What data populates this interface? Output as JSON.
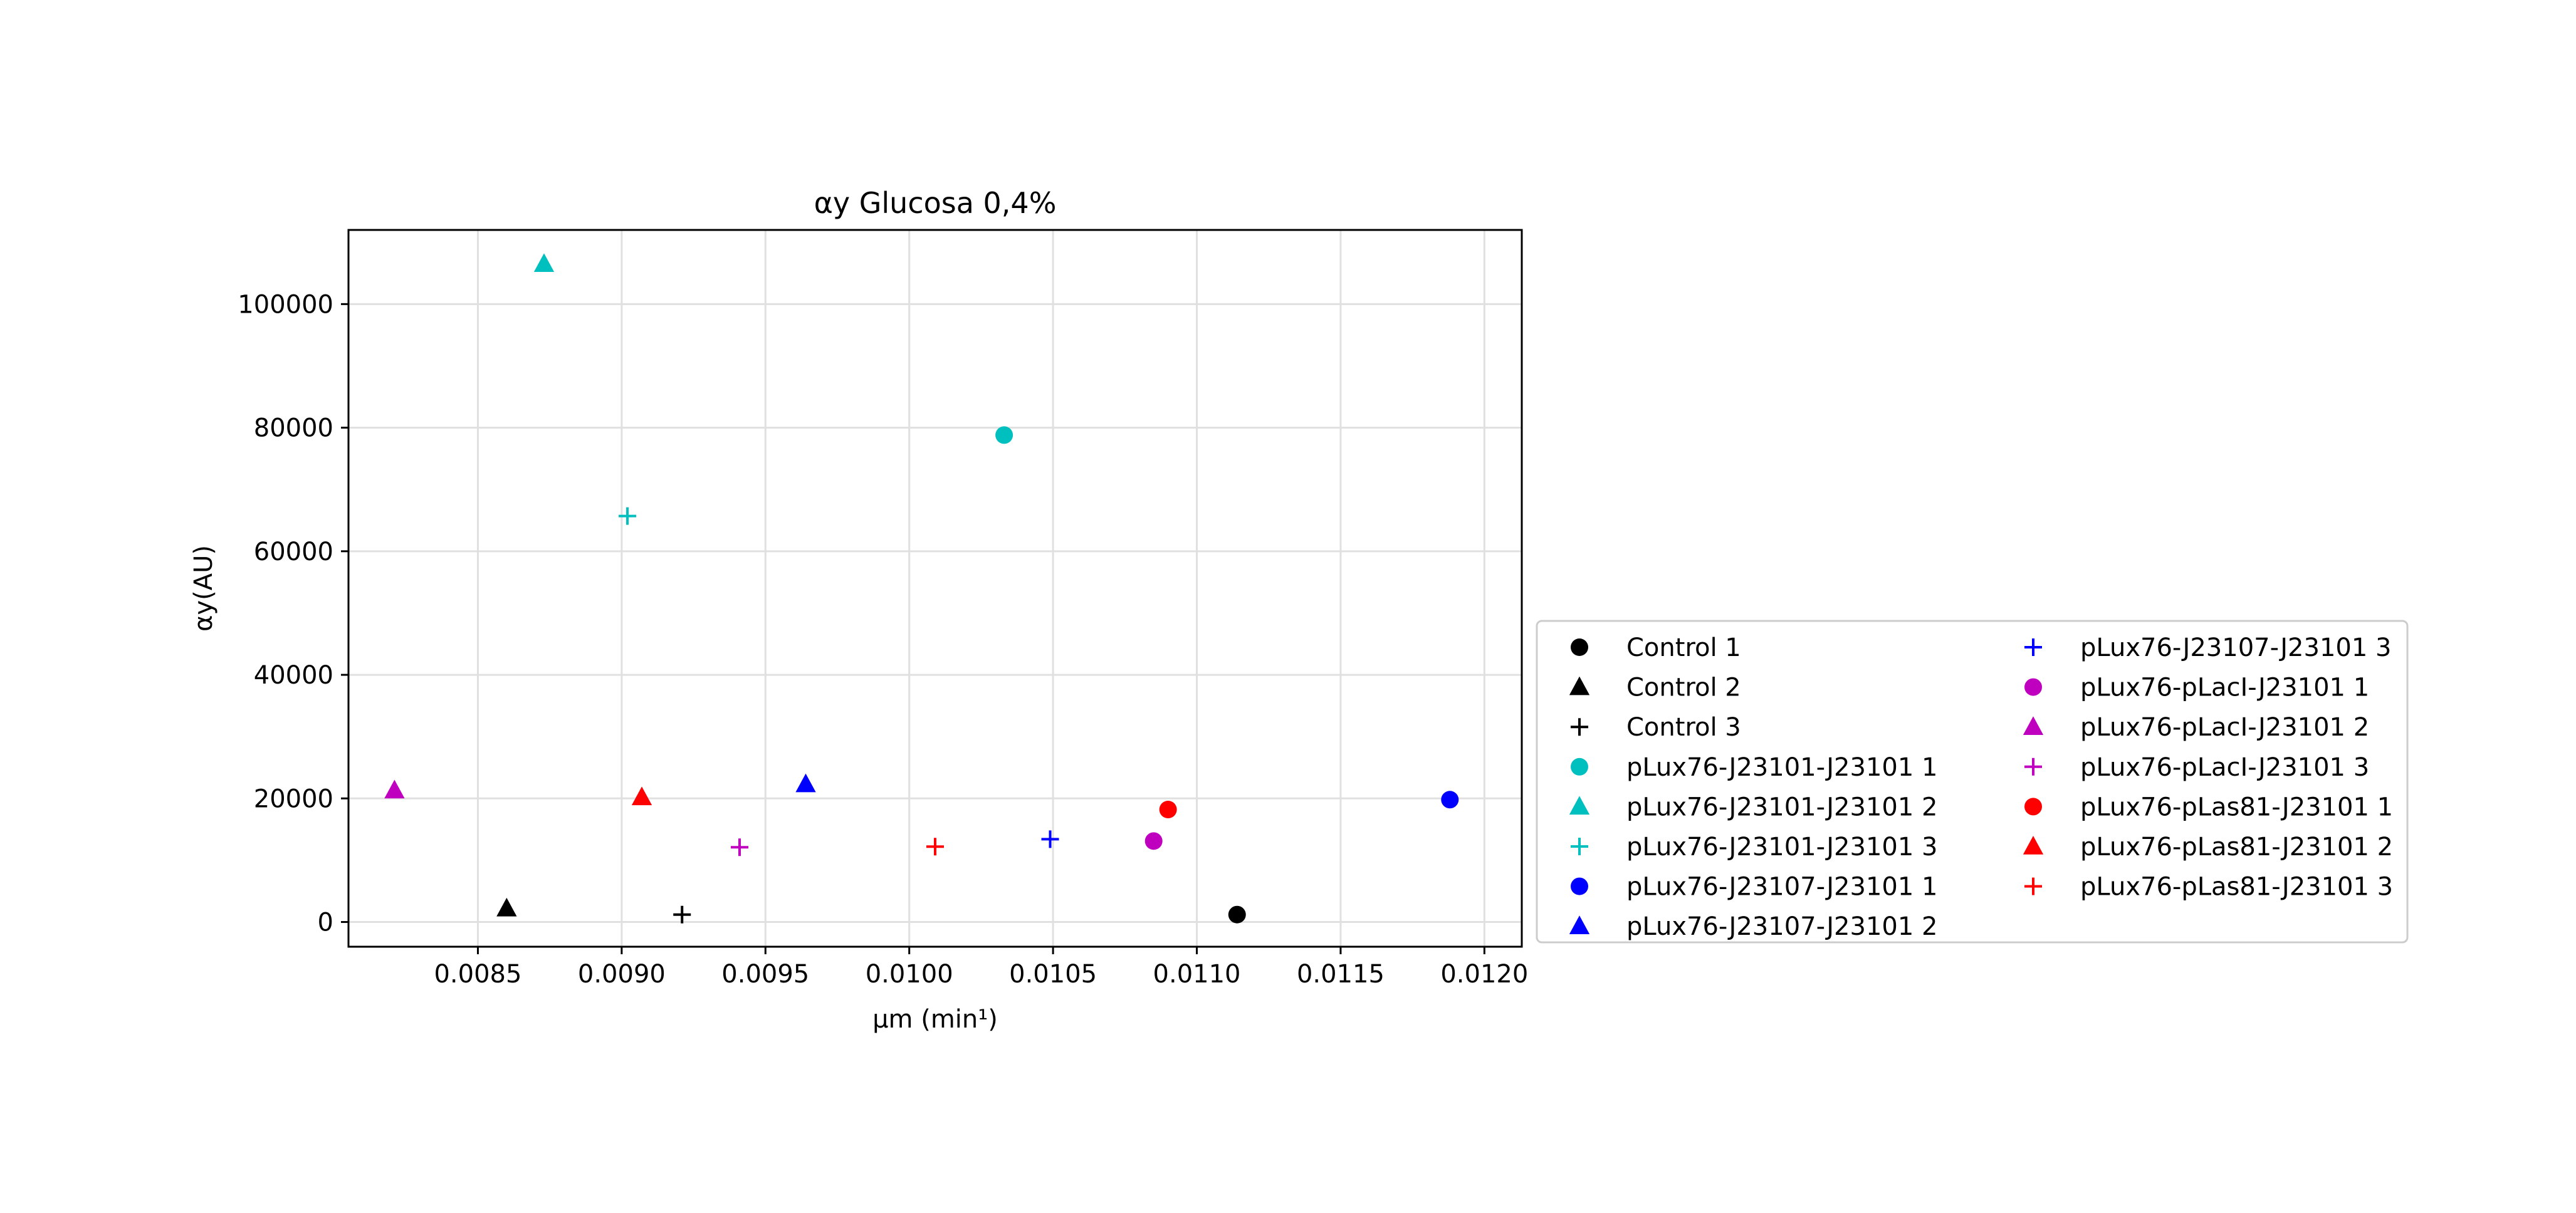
{
  "chart_data": {
    "type": "scatter",
    "title": "αy Glucosa 0,4%",
    "xlabel": "μm (min¹)",
    "ylabel": "αy(AU)",
    "xlim": [
      0.00805,
      0.01213
    ],
    "ylim": [
      -4000,
      112000
    ],
    "xticks": [
      0.0085,
      0.009,
      0.0095,
      0.01,
      0.0105,
      0.011,
      0.0115,
      0.012
    ],
    "xtick_labels": [
      "0.0085",
      "0.0090",
      "0.0095",
      "0.0100",
      "0.0105",
      "0.0110",
      "0.0115",
      "0.0120"
    ],
    "yticks": [
      0,
      20000,
      40000,
      60000,
      80000,
      100000
    ],
    "ytick_labels": [
      "0",
      "20000",
      "40000",
      "60000",
      "80000",
      "100000"
    ],
    "grid": true,
    "legend_position": "outside-right",
    "series": [
      {
        "name": "Control 1",
        "color": "#000000",
        "marker": "circle",
        "x": 0.01114,
        "y": 1200
      },
      {
        "name": "Control 2",
        "color": "#000000",
        "marker": "triangle",
        "x": 0.0086,
        "y": 2200
      },
      {
        "name": "Control 3",
        "color": "#000000",
        "marker": "plus",
        "x": 0.00921,
        "y": 1200
      },
      {
        "name": "pLux76-J23101-J23101 1",
        "color": "#00bfbf",
        "marker": "circle",
        "x": 0.01033,
        "y": 78800
      },
      {
        "name": "pLux76-J23101-J23101 2",
        "color": "#00bfbf",
        "marker": "triangle",
        "x": 0.00873,
        "y": 106500
      },
      {
        "name": "pLux76-J23101-J23101 3",
        "color": "#00bfbf",
        "marker": "plus",
        "x": 0.00902,
        "y": 65700
      },
      {
        "name": "pLux76-J23107-J23101 1",
        "color": "#0000ff",
        "marker": "circle",
        "x": 0.01188,
        "y": 19800
      },
      {
        "name": "pLux76-J23107-J23101 2",
        "color": "#0000ff",
        "marker": "triangle",
        "x": 0.00964,
        "y": 22300
      },
      {
        "name": "pLux76-J23107-J23101 3",
        "color": "#0000ff",
        "marker": "plus",
        "x": 0.01049,
        "y": 13400
      },
      {
        "name": "pLux76-pLacI-J23101 1",
        "color": "#bf00bf",
        "marker": "circle",
        "x": 0.01085,
        "y": 13100
      },
      {
        "name": "pLux76-pLacI-J23101 2",
        "color": "#bf00bf",
        "marker": "triangle",
        "x": 0.00821,
        "y": 21300
      },
      {
        "name": "pLux76-pLacI-J23101 3",
        "color": "#bf00bf",
        "marker": "plus",
        "x": 0.00941,
        "y": 12100
      },
      {
        "name": "pLux76-pLas81-J23101 1",
        "color": "#ff0000",
        "marker": "circle",
        "x": 0.0109,
        "y": 18200
      },
      {
        "name": "pLux76-pLas81-J23101 2",
        "color": "#ff0000",
        "marker": "triangle",
        "x": 0.00907,
        "y": 20200
      },
      {
        "name": "pLux76-pLas81-J23101 3",
        "color": "#ff0000",
        "marker": "plus",
        "x": 0.01009,
        "y": 12200
      }
    ]
  }
}
